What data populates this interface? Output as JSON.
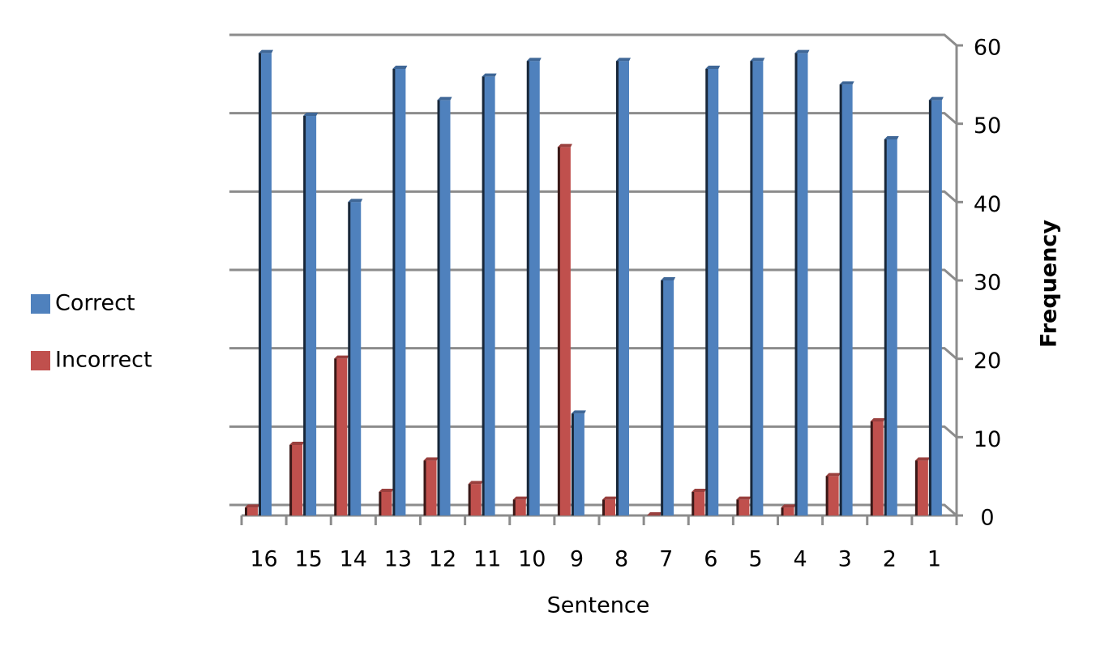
{
  "chart_data": {
    "type": "bar3d",
    "x_label": "Sentence",
    "y_label": "Frequency",
    "categories": [
      "16",
      "15",
      "14",
      "13",
      "12",
      "11",
      "10",
      "9",
      "8",
      "7",
      "6",
      "5",
      "4",
      "3",
      "2",
      "1"
    ],
    "series": [
      {
        "name": "Correct",
        "color": "#4f81bd",
        "values": [
          59,
          51,
          40,
          57,
          53,
          56,
          58,
          13,
          58,
          30,
          57,
          58,
          59,
          55,
          48,
          53
        ]
      },
      {
        "name": "Incorrect",
        "color": "#c0504d",
        "values": [
          1,
          9,
          20,
          3,
          7,
          4,
          2,
          47,
          2,
          0,
          3,
          2,
          1,
          5,
          12,
          7
        ]
      }
    ],
    "ylim": [
      0,
      60
    ],
    "yticks": [
      0,
      10,
      20,
      30,
      40,
      50,
      60
    ],
    "grid": true,
    "legend": "left"
  }
}
